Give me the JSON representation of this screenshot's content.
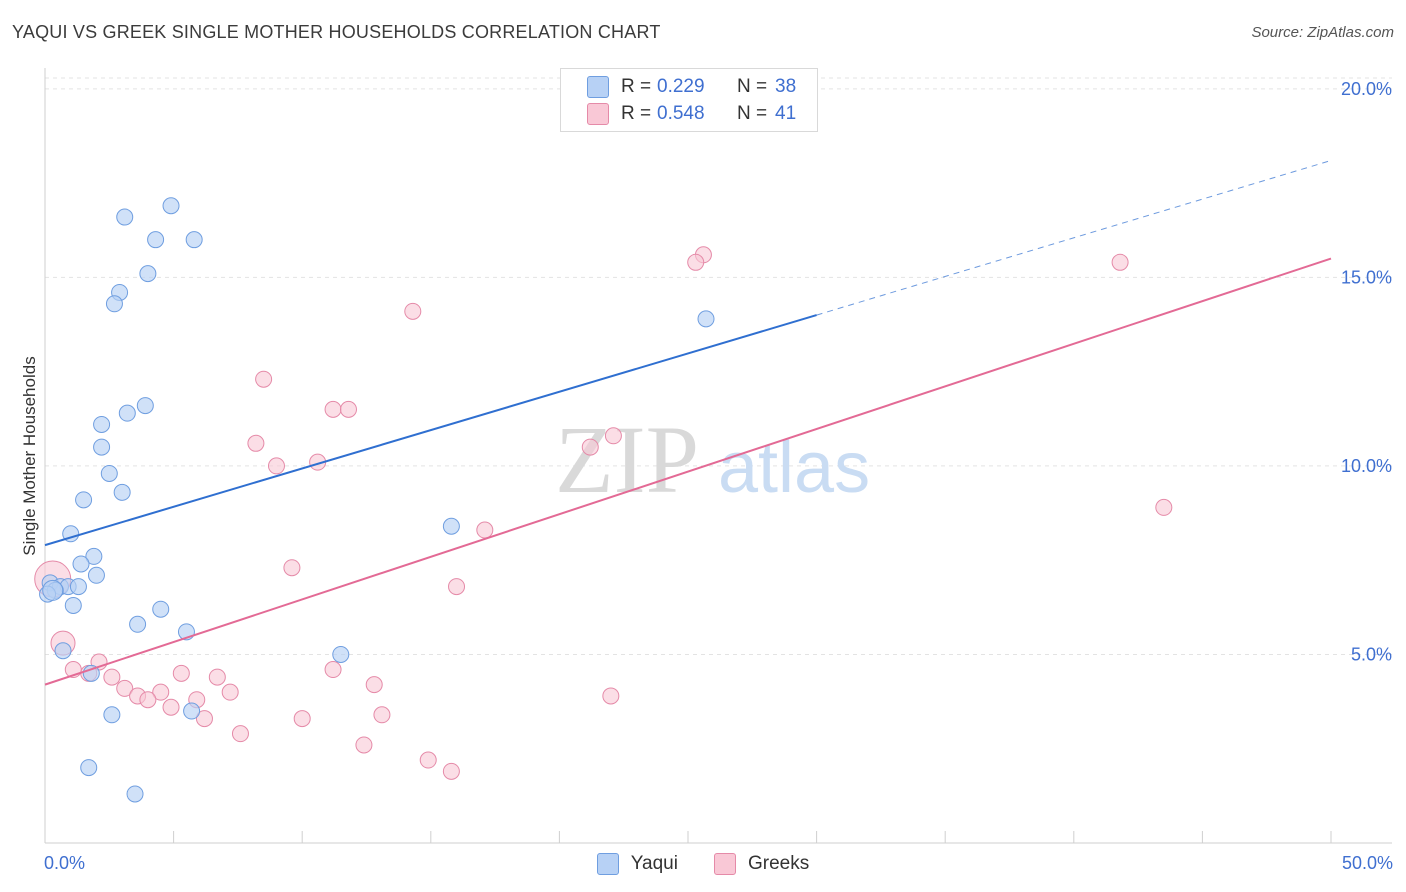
{
  "header": {
    "title": "YAQUI VS GREEK SINGLE MOTHER HOUSEHOLDS CORRELATION CHART",
    "source": "Source: ZipAtlas.com"
  },
  "watermark": {
    "zip": "ZIP",
    "atlas": "atlas"
  },
  "legend": {
    "rows": [
      {
        "r_label": "R =",
        "r_value": "0.229",
        "n_label": "N =",
        "n_value": "38"
      },
      {
        "r_label": "R =",
        "r_value": "0.548",
        "n_label": "N =",
        "n_value": "41"
      }
    ]
  },
  "bottom_legend": {
    "series1": "Yaqui",
    "series2": "Greeks"
  },
  "chart_data": {
    "type": "scatter",
    "title": "YAQUI VS GREEK SINGLE MOTHER HOUSEHOLDS CORRELATION CHART",
    "xlabel": "",
    "ylabel": "Single Mother Households",
    "xlim": [
      0,
      50
    ],
    "ylim": [
      0,
      20.5
    ],
    "x_tick_labels": [
      "0.0%",
      "50.0%"
    ],
    "y_ticks": [
      5,
      10,
      15,
      20
    ],
    "y_tick_labels": [
      "5.0%",
      "10.0%",
      "15.0%",
      "20.0%"
    ],
    "grid": true,
    "colors": {
      "yaqui_fill": "#b7d1f5",
      "yaqui_stroke": "#6f9ee0",
      "yaqui_line": "#2f6fd0",
      "greeks_fill": "#f9c8d6",
      "greeks_stroke": "#e58aa8",
      "greeks_line": "#e36a95",
      "tick_label": "#3f6fd0"
    },
    "series": [
      {
        "name": "Yaqui",
        "r": 0.229,
        "n": 38,
        "trend": {
          "x0": 0,
          "y0": 7.9,
          "x1": 30,
          "y1": 14.0,
          "dash_to_x": 50,
          "dash_to_y": 18.1
        },
        "points": [
          [
            3.1,
            16.6
          ],
          [
            4.9,
            16.9
          ],
          [
            4.3,
            16.0
          ],
          [
            5.8,
            16.0
          ],
          [
            4.0,
            15.1
          ],
          [
            2.9,
            14.6
          ],
          [
            2.7,
            14.3
          ],
          [
            3.9,
            11.6
          ],
          [
            3.2,
            11.4
          ],
          [
            2.2,
            11.1
          ],
          [
            2.2,
            10.5
          ],
          [
            2.5,
            9.8
          ],
          [
            3.0,
            9.3
          ],
          [
            1.5,
            9.1
          ],
          [
            1.0,
            8.2
          ],
          [
            1.9,
            7.6
          ],
          [
            1.4,
            7.4
          ],
          [
            2.0,
            7.1
          ],
          [
            0.2,
            6.9
          ],
          [
            0.6,
            6.8
          ],
          [
            0.9,
            6.8
          ],
          [
            0.4,
            6.7
          ],
          [
            1.3,
            6.8
          ],
          [
            0.1,
            6.6
          ],
          [
            1.1,
            6.3
          ],
          [
            4.5,
            6.2
          ],
          [
            3.6,
            5.8
          ],
          [
            5.5,
            5.6
          ],
          [
            0.7,
            5.1
          ],
          [
            11.5,
            5.0
          ],
          [
            1.8,
            4.5
          ],
          [
            2.6,
            3.4
          ],
          [
            5.7,
            3.5
          ],
          [
            1.7,
            2.0
          ],
          [
            3.5,
            1.3
          ],
          [
            15.8,
            8.4
          ],
          [
            25.7,
            13.9
          ],
          [
            0.3,
            6.7
          ]
        ]
      },
      {
        "name": "Greeks",
        "r": 0.548,
        "n": 41,
        "trend": {
          "x0": 0,
          "y0": 4.2,
          "x1": 50,
          "y1": 15.5
        },
        "points": [
          [
            0.3,
            7.0
          ],
          [
            0.7,
            5.3
          ],
          [
            25.6,
            15.6
          ],
          [
            25.3,
            15.4
          ],
          [
            41.8,
            15.4
          ],
          [
            14.3,
            14.1
          ],
          [
            8.5,
            12.3
          ],
          [
            11.2,
            11.5
          ],
          [
            11.8,
            11.5
          ],
          [
            22.1,
            10.8
          ],
          [
            8.2,
            10.6
          ],
          [
            21.2,
            10.5
          ],
          [
            10.6,
            10.1
          ],
          [
            9.0,
            10.0
          ],
          [
            43.5,
            8.9
          ],
          [
            17.1,
            8.3
          ],
          [
            9.6,
            7.3
          ],
          [
            16.0,
            6.8
          ],
          [
            1.1,
            4.6
          ],
          [
            2.1,
            4.8
          ],
          [
            1.7,
            4.5
          ],
          [
            2.6,
            4.4
          ],
          [
            5.3,
            4.5
          ],
          [
            6.7,
            4.4
          ],
          [
            11.2,
            4.6
          ],
          [
            12.8,
            4.2
          ],
          [
            3.1,
            4.1
          ],
          [
            4.5,
            4.0
          ],
          [
            7.2,
            4.0
          ],
          [
            3.6,
            3.9
          ],
          [
            4.0,
            3.8
          ],
          [
            22.0,
            3.9
          ],
          [
            5.9,
            3.8
          ],
          [
            4.9,
            3.6
          ],
          [
            6.2,
            3.3
          ],
          [
            10.0,
            3.3
          ],
          [
            13.1,
            3.4
          ],
          [
            7.6,
            2.9
          ],
          [
            12.4,
            2.6
          ],
          [
            14.9,
            2.2
          ],
          [
            15.8,
            1.9
          ]
        ]
      }
    ]
  }
}
